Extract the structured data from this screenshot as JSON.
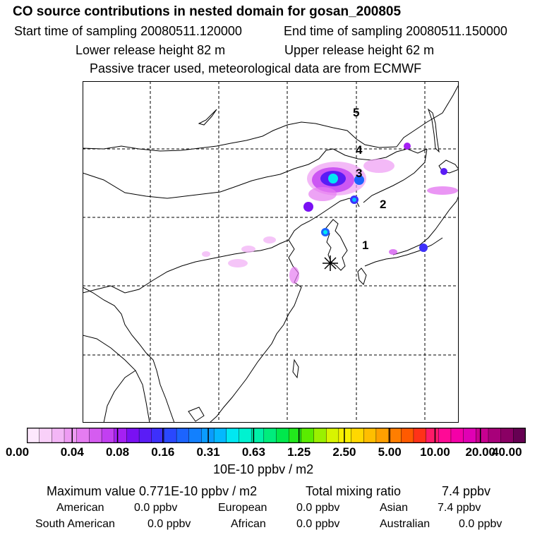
{
  "header": {
    "title": "CO  source contributions in nested domain for gosan_200805",
    "start_time": "Start time of sampling 20080511.120000",
    "end_time": "End time of sampling 20080511.150000",
    "lower_release": "Lower release height   82 m",
    "upper_release": "Upper release height   62 m",
    "tracer_note": "Passive tracer used, meteorological data are from ECMWF"
  },
  "map": {
    "site_marker": "receptor-asterisk-icon",
    "trajectory_labels": [
      "1",
      "2",
      "3",
      "4",
      "5"
    ]
  },
  "colorbar": {
    "colors": [
      "#fde8fd",
      "#f9d0f9",
      "#f3b6f6",
      "#ee9bf3",
      "#e57cf1",
      "#d55cf0",
      "#c23ff1",
      "#a520f3",
      "#7a10f3",
      "#5a1cf6",
      "#3d30fb",
      "#2a48fe",
      "#1c64fe",
      "#1280fe",
      "#0a9cfe",
      "#04b8fe",
      "#00e8f2",
      "#00f2d0",
      "#00f0a8",
      "#00ec7c",
      "#00e84c",
      "#22e81c",
      "#5aec00",
      "#9af000",
      "#d8f400",
      "#f8f000",
      "#ffd800",
      "#ffbe00",
      "#ffa000",
      "#ff7e00",
      "#ff5a00",
      "#ff3218",
      "#ff1a68",
      "#ff0a96",
      "#f400a8",
      "#e000b4",
      "#c80090",
      "#a8007a",
      "#8a0064",
      "#660052"
    ],
    "tick_labels": [
      "0.00",
      "0.04",
      "0.08",
      "0.16",
      "0.31",
      "0.63",
      "1.25",
      "2.50",
      "5.00",
      "10.00",
      "20.00",
      "40.00"
    ],
    "units": "10E-10 ppbv / m2"
  },
  "summary": {
    "max_value": "Maximum value  0.771E-10 ppbv / m2",
    "total_label": "Total mixing ratio",
    "total_value": "7.4 ppbv",
    "regions": [
      {
        "name": "American",
        "value": "0.0 ppbv"
      },
      {
        "name": "European",
        "value": "0.0 ppbv"
      },
      {
        "name": "Asian",
        "value": "7.4 ppbv"
      },
      {
        "name": "South American",
        "value": "0.0 ppbv"
      },
      {
        "name": "African",
        "value": "0.0 ppbv"
      },
      {
        "name": "Australian",
        "value": "0.0 ppbv"
      }
    ]
  }
}
